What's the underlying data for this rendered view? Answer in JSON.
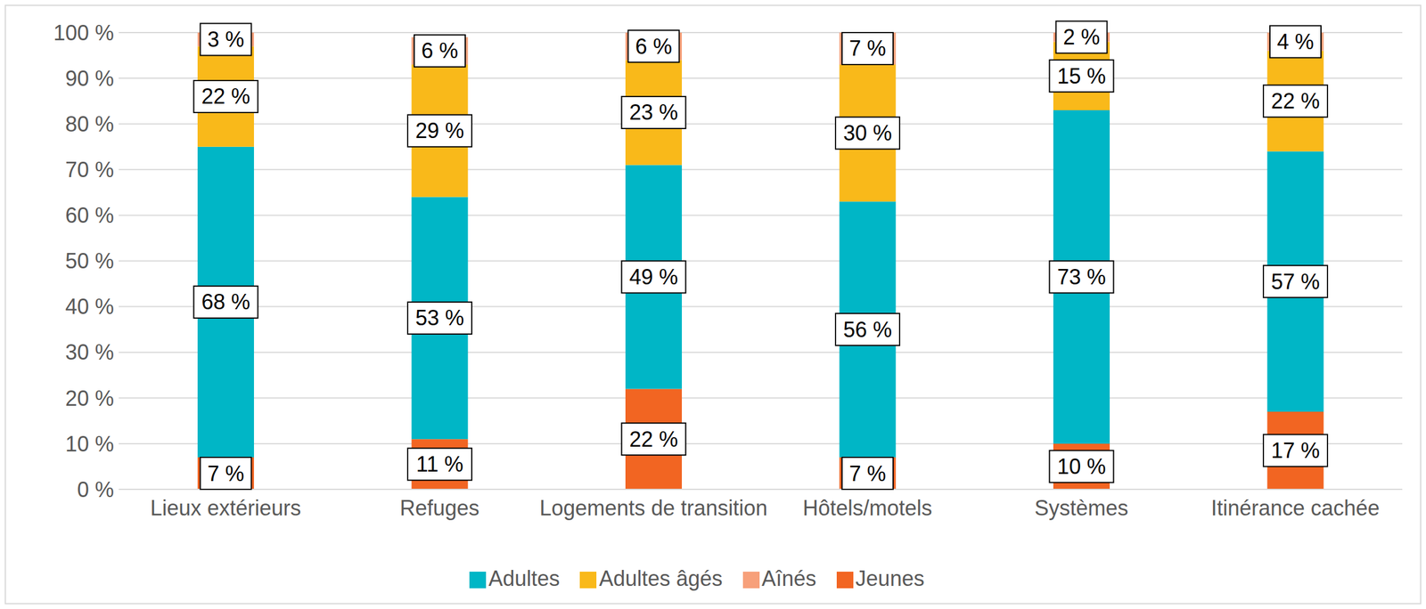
{
  "chart_data": {
    "type": "bar",
    "stacked": true,
    "data_labels": true,
    "grid": true,
    "legend": "bottom",
    "categories": [
      "Lieux extérieurs",
      "Refuges",
      "Logements de transition",
      "Hôtels/motels",
      "Systèmes",
      "Itinérance cachée"
    ],
    "ylim": [
      0,
      100
    ],
    "yticks": [
      {
        "value": 0,
        "label": "0 %"
      },
      {
        "value": 10,
        "label": "10 %"
      },
      {
        "value": 20,
        "label": "20 %"
      },
      {
        "value": 30,
        "label": "30 %"
      },
      {
        "value": 40,
        "label": "40 %"
      },
      {
        "value": 50,
        "label": "50 %"
      },
      {
        "value": 60,
        "label": "60 %"
      },
      {
        "value": 70,
        "label": "70 %"
      },
      {
        "value": 80,
        "label": "80 %"
      },
      {
        "value": 90,
        "label": "90 %"
      },
      {
        "value": 100,
        "label": "100 %"
      }
    ],
    "series": [
      {
        "name": "Jeunes",
        "color": "#f26522",
        "values": [
          7,
          11,
          22,
          7,
          10,
          17
        ],
        "value_labels": [
          "7 %",
          "11 %",
          "22 %",
          "7 %",
          "10 %",
          "17 %"
        ]
      },
      {
        "name": "Adultes",
        "color": "#00b6c6",
        "values": [
          68,
          53,
          49,
          56,
          73,
          57
        ],
        "value_labels": [
          "68 %",
          "53 %",
          "49 %",
          "56 %",
          "73 %",
          "57 %"
        ]
      },
      {
        "name": "Adultes âgés",
        "color": "#f9b91a",
        "values": [
          22,
          29,
          23,
          30,
          15,
          22
        ],
        "value_labels": [
          "22 %",
          "29 %",
          "23 %",
          "30 %",
          "15 %",
          "22 %"
        ]
      },
      {
        "name": "Aînés",
        "color": "#f7a07a",
        "values": [
          3,
          6,
          6,
          7,
          2,
          4
        ],
        "value_labels": [
          "3 %",
          "6 %",
          "6 %",
          "7 %",
          "2 %",
          "4 %"
        ]
      }
    ]
  }
}
